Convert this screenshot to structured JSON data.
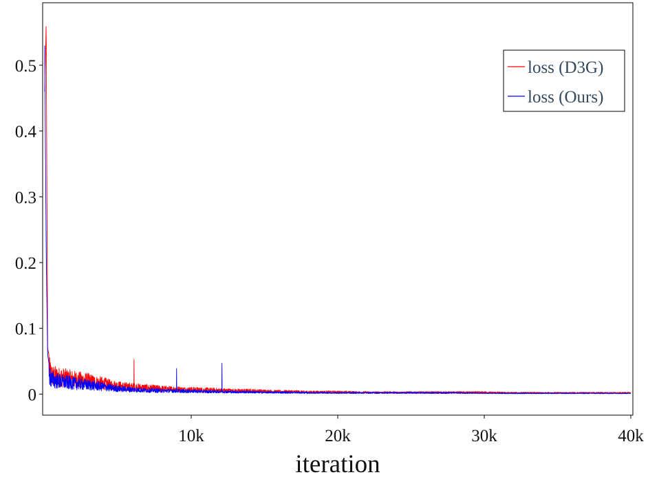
{
  "chart_data": {
    "type": "line",
    "title": "",
    "xlabel": "iteration",
    "ylabel": "",
    "xlim": [
      0,
      40000
    ],
    "ylim": [
      -0.032,
      0.595
    ],
    "xticks": [
      {
        "value": 10000,
        "label": "10k"
      },
      {
        "value": 20000,
        "label": "20k"
      },
      {
        "value": 30000,
        "label": "30k"
      },
      {
        "value": 40000,
        "label": "40k"
      }
    ],
    "yticks": [
      {
        "value": 0,
        "label": "0"
      },
      {
        "value": 0.1,
        "label": "0.1"
      },
      {
        "value": 0.2,
        "label": "0.2"
      },
      {
        "value": 0.3,
        "label": "0.3"
      },
      {
        "value": 0.4,
        "label": "0.4"
      },
      {
        "value": 0.5,
        "label": "0.5"
      }
    ],
    "grid": false,
    "legend_position": "top-right",
    "series": [
      {
        "name": "loss (D3G)",
        "color": "#ff0000",
        "x": [
          0,
          100,
          200,
          300,
          500,
          800,
          1200,
          1600,
          2000,
          2500,
          3000,
          3500,
          4000,
          4500,
          5000,
          5500,
          6000,
          6500,
          7000,
          7500,
          8000,
          8500,
          9000,
          9500,
          10000,
          11000,
          12000,
          13000,
          14000,
          15000,
          16000,
          17000,
          18000,
          19000,
          20000,
          22000,
          24000,
          26000,
          28000,
          30000,
          32000,
          34000,
          36000,
          38000,
          40000
        ],
        "y": [
          0.46,
          0.563,
          0.07,
          0.058,
          0.045,
          0.042,
          0.04,
          0.038,
          0.036,
          0.034,
          0.032,
          0.028,
          0.026,
          0.022,
          0.02,
          0.018,
          0.017,
          0.016,
          0.015,
          0.014,
          0.013,
          0.012,
          0.012,
          0.011,
          0.011,
          0.01,
          0.009,
          0.008,
          0.008,
          0.007,
          0.006,
          0.006,
          0.005,
          0.005,
          0.005,
          0.004,
          0.004,
          0.004,
          0.004,
          0.004,
          0.003,
          0.003,
          0.003,
          0.003,
          0.003
        ]
      },
      {
        "name": "loss (Ours)",
        "color": "#0000ff",
        "x": [
          0,
          100,
          200,
          300,
          500,
          800,
          1200,
          1600,
          2000,
          2500,
          3000,
          3500,
          4000,
          4500,
          5000,
          5500,
          6000,
          6500,
          7000,
          7500,
          8000,
          8500,
          9000,
          9500,
          10000,
          11000,
          12000,
          13000,
          14000,
          15000,
          16000,
          17000,
          18000,
          19000,
          20000,
          22000,
          24000,
          26000,
          28000,
          30000,
          32000,
          34000,
          36000,
          38000,
          40000
        ],
        "y": [
          0.53,
          0.22,
          0.06,
          0.045,
          0.035,
          0.032,
          0.03,
          0.028,
          0.026,
          0.024,
          0.022,
          0.02,
          0.018,
          0.015,
          0.013,
          0.012,
          0.011,
          0.01,
          0.009,
          0.009,
          0.008,
          0.008,
          0.008,
          0.007,
          0.007,
          0.006,
          0.006,
          0.005,
          0.005,
          0.004,
          0.004,
          0.004,
          0.003,
          0.003,
          0.003,
          0.003,
          0.003,
          0.003,
          0.003,
          0.002,
          0.002,
          0.002,
          0.002,
          0.002,
          0.002
        ]
      }
    ],
    "annotations": [
      {
        "series": "loss (D3G)",
        "x": 6100,
        "y": 0.053
      },
      {
        "series": "loss (Ours)",
        "x": 9000,
        "y": 0.039
      },
      {
        "series": "loss (Ours)",
        "x": 12100,
        "y": 0.047
      }
    ]
  }
}
